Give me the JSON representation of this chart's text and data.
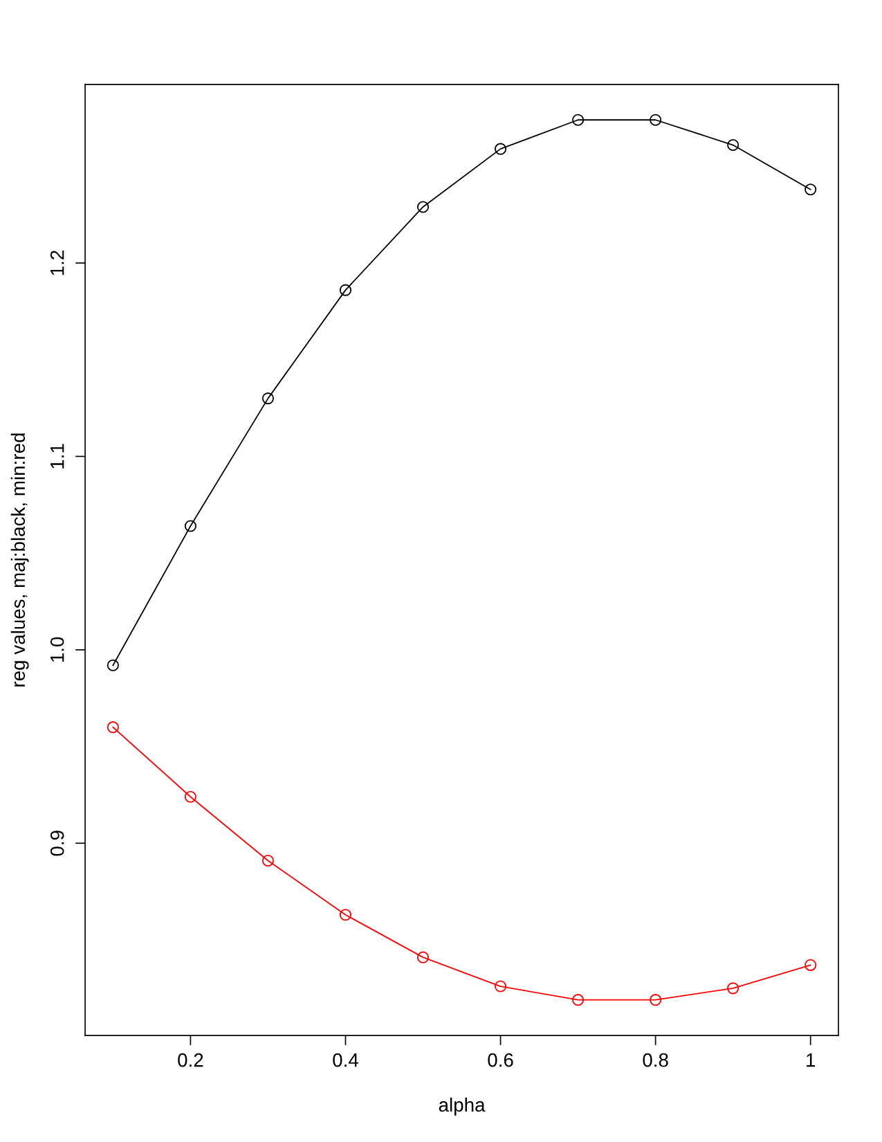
{
  "chart_data": {
    "type": "line",
    "xlabel": "alpha",
    "ylabel": "reg values, maj:black, min:red",
    "x": [
      0.1,
      0.2,
      0.3,
      0.4,
      0.5,
      0.6,
      0.7,
      0.8,
      0.9,
      1.0
    ],
    "series": [
      {
        "color": "#000000",
        "values": [
          0.992,
          1.064,
          1.13,
          1.186,
          1.229,
          1.259,
          1.274,
          1.274,
          1.261,
          1.238
        ]
      },
      {
        "color": "#ff0000",
        "values": [
          0.96,
          0.924,
          0.891,
          0.863,
          0.841,
          0.826,
          0.819,
          0.819,
          0.825,
          0.837
        ]
      }
    ],
    "xlim": [
      0.064,
      1.036
    ],
    "ylim": [
      0.8006,
      1.2923
    ],
    "xticks": [
      0.2,
      0.4,
      0.6,
      0.8,
      {
        "value": 1.0,
        "label": "1"
      }
    ],
    "yticks": [
      0.9,
      {
        "value": 1.0,
        "label": "1.0"
      },
      1.1,
      1.2
    ],
    "grid": false,
    "marker": "circle",
    "line_style": "solid"
  }
}
